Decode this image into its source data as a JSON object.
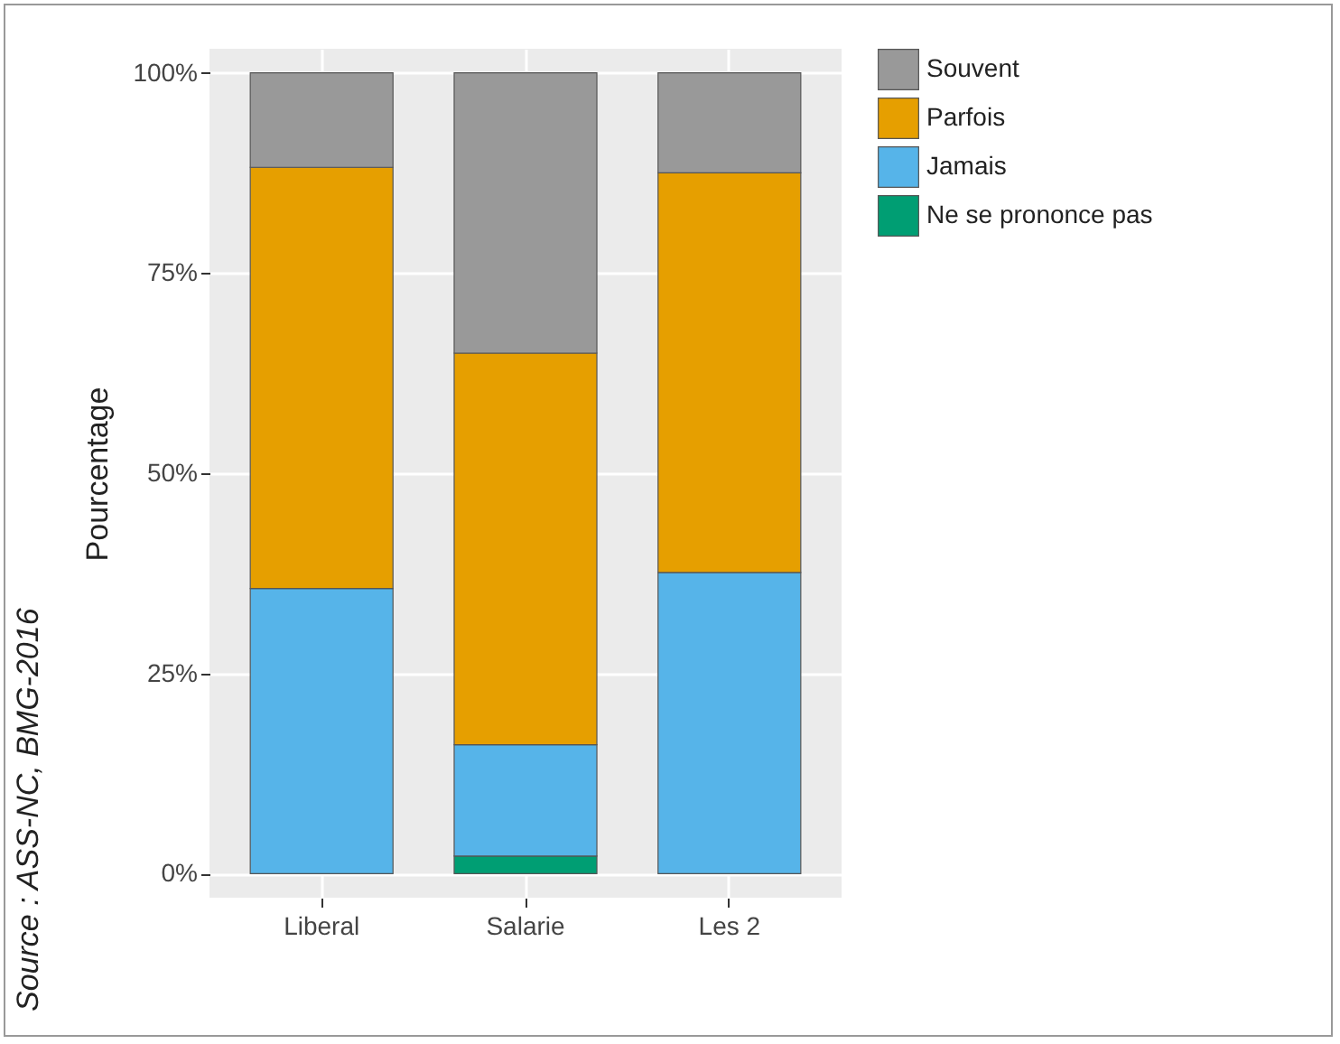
{
  "chart_data": {
    "type": "bar",
    "stacked": true,
    "ylabel": "Pourcentage",
    "categories": [
      "Liberal",
      "Salarie",
      "Les 2"
    ],
    "series": [
      {
        "name": "Ne se prononce pas",
        "color": "#009e73",
        "values": [
          null,
          2.2,
          null
        ]
      },
      {
        "name": "Jamais",
        "color": "#56b4e9",
        "values": [
          35.6,
          13.9,
          37.6
        ]
      },
      {
        "name": "Parfois",
        "color": "#e69f00",
        "values": [
          52.6,
          48.9,
          49.9
        ]
      },
      {
        "name": "Souvent",
        "color": "#999999",
        "values": [
          11.8,
          35.0,
          12.5
        ]
      }
    ],
    "ylim": [
      -3,
      103
    ],
    "yticks": [
      {
        "value": 0,
        "label": "0%"
      },
      {
        "value": 25,
        "label": "25%"
      },
      {
        "value": 50,
        "label": "50%"
      },
      {
        "value": 75,
        "label": "75%"
      },
      {
        "value": 100,
        "label": "100%"
      }
    ],
    "grid": true,
    "legend": "right",
    "annotations": [
      "Source : ASS-NC, BMG-2016"
    ]
  }
}
